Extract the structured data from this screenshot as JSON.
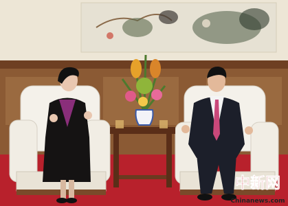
{
  "watermark": {
    "logo": "中新网",
    "site": "Chinanews.com"
  }
}
